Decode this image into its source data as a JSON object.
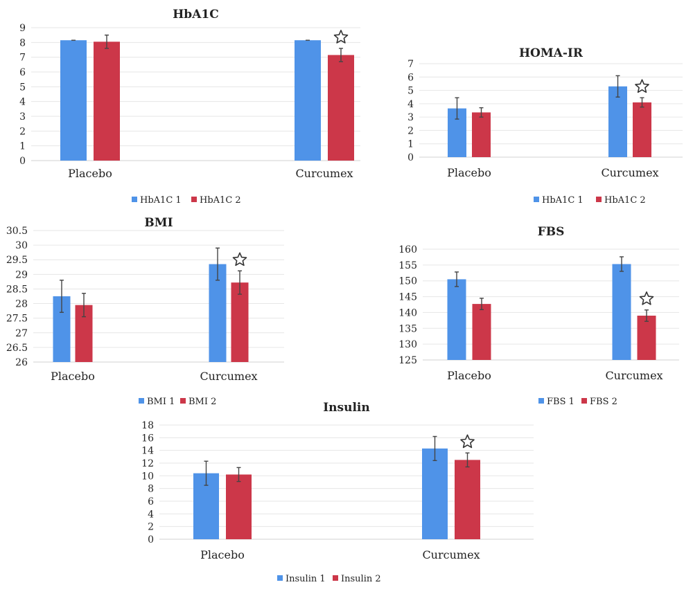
{
  "colors": {
    "series1": "#4f93e8",
    "series2": "#cc3749"
  },
  "significance_marker": "star-icon",
  "chart_data": [
    {
      "id": "hba1c",
      "type": "bar",
      "title": "HbA1C",
      "categories": [
        "Placebo",
        "Curcumex"
      ],
      "ylim": [
        0,
        9
      ],
      "yticks": [
        0,
        1,
        2,
        3,
        4,
        5,
        6,
        7,
        8,
        9
      ],
      "grid": true,
      "legend_position": "bottom",
      "series": [
        {
          "name": "HbA1C 1",
          "values": [
            8.15,
            8.15
          ],
          "errors": [
            0,
            0
          ]
        },
        {
          "name": "HbA1C 2",
          "values": [
            8.05,
            7.15
          ],
          "errors": [
            0.45,
            0.45
          ]
        }
      ],
      "significant": [
        false,
        true
      ]
    },
    {
      "id": "homa",
      "type": "bar",
      "title": "HOMA-IR",
      "categories": [
        "Placebo",
        "Curcumex"
      ],
      "ylim": [
        0,
        7
      ],
      "yticks": [
        0,
        1,
        2,
        3,
        4,
        5,
        6,
        7
      ],
      "grid": true,
      "legend_position": "bottom",
      "series": [
        {
          "name": "HbA1C 1",
          "values": [
            3.65,
            5.3
          ],
          "errors": [
            0.8,
            0.8
          ]
        },
        {
          "name": "HbA1C 2",
          "values": [
            3.35,
            4.1
          ],
          "errors": [
            0.35,
            0.35
          ]
        }
      ],
      "significant": [
        false,
        true
      ]
    },
    {
      "id": "bmi",
      "type": "bar",
      "title": "BMI",
      "categories": [
        "Placebo",
        "Curcumex"
      ],
      "ylim": [
        26,
        30.5
      ],
      "yticks": [
        26,
        26.5,
        27,
        27.5,
        28,
        28.5,
        29,
        29.5,
        30,
        30.5
      ],
      "grid": true,
      "legend_position": "bottom",
      "series": [
        {
          "name": "BMI 1",
          "values": [
            28.25,
            29.35
          ],
          "errors": [
            0.55,
            0.55
          ]
        },
        {
          "name": "BMI 2",
          "values": [
            27.95,
            28.72
          ],
          "errors": [
            0.4,
            0.4
          ]
        }
      ],
      "significant": [
        false,
        true
      ]
    },
    {
      "id": "fbs",
      "type": "bar",
      "title": "FBS",
      "categories": [
        "Placebo",
        "Curcumex"
      ],
      "ylim": [
        125,
        160
      ],
      "yticks": [
        125,
        130,
        135,
        140,
        145,
        150,
        155,
        160
      ],
      "grid": true,
      "legend_position": "bottom",
      "series": [
        {
          "name": "FBS 1",
          "values": [
            150.5,
            155.3
          ],
          "errors": [
            2.3,
            2.3
          ]
        },
        {
          "name": "FBS 2",
          "values": [
            142.7,
            139.0
          ],
          "errors": [
            1.8,
            1.8
          ]
        }
      ],
      "significant": [
        false,
        true
      ]
    },
    {
      "id": "insulin",
      "type": "bar",
      "title": "Insulin",
      "categories": [
        "Placebo",
        "Curcumex"
      ],
      "ylim": [
        0,
        18
      ],
      "yticks": [
        0,
        2,
        4,
        6,
        8,
        10,
        12,
        14,
        16,
        18
      ],
      "grid": true,
      "legend_position": "bottom",
      "series": [
        {
          "name": "Insulin 1",
          "values": [
            10.4,
            14.3
          ],
          "errors": [
            1.9,
            1.9
          ]
        },
        {
          "name": "Insulin 2",
          "values": [
            10.2,
            12.5
          ],
          "errors": [
            1.1,
            1.1
          ]
        }
      ],
      "significant": [
        false,
        true
      ]
    }
  ]
}
